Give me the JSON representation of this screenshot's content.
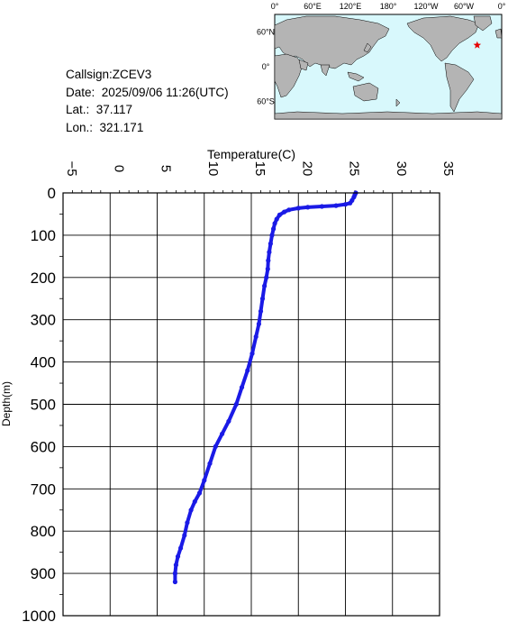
{
  "info": {
    "callsign": "Callsign:ZCEV3",
    "date": "Date:  2025/09/06 11:26(UTC)",
    "lat": "Lat.:  37.117",
    "lon": "Lon.:  321.171"
  },
  "map": {
    "lon_labels": [
      "0°",
      "60°E",
      "120°E",
      "180°",
      "120°W",
      "60°W",
      "0°"
    ],
    "lat_labels": [
      "60°N",
      "0°",
      "60°S"
    ],
    "colors": {
      "ocean": "#d8f8fc",
      "land": "#b4b4b4",
      "marker": "#e60000"
    },
    "marker": {
      "lat": 37.117,
      "lon": 321.171,
      "symbol": "star"
    }
  },
  "chart_data": {
    "type": "line",
    "xlabel": "Temperature(C)",
    "ylabel": "Depth(m)",
    "xlim": [
      -5,
      35
    ],
    "ylim": [
      1000,
      0
    ],
    "x_ticks": [
      -5,
      0,
      5,
      10,
      15,
      20,
      25,
      30,
      35
    ],
    "y_ticks": [
      0,
      100,
      200,
      300,
      400,
      500,
      600,
      700,
      800,
      900,
      1000
    ],
    "x_axis_position": "top",
    "y_axis_inverted": true,
    "grid": true,
    "series": [
      {
        "color": "#1a1ae6",
        "marker": "dot",
        "points": [
          [
            26.1,
            0
          ],
          [
            26.0,
            5
          ],
          [
            25.9,
            10
          ],
          [
            25.7,
            18
          ],
          [
            25.5,
            24
          ],
          [
            25.0,
            27
          ],
          [
            24.0,
            30
          ],
          [
            22.5,
            32
          ],
          [
            21.0,
            34
          ],
          [
            20.0,
            36
          ],
          [
            19.0,
            40
          ],
          [
            18.5,
            45
          ],
          [
            18.0,
            52
          ],
          [
            17.7,
            62
          ],
          [
            17.5,
            72
          ],
          [
            17.35,
            85
          ],
          [
            17.2,
            100
          ],
          [
            17.05,
            120
          ],
          [
            16.9,
            140
          ],
          [
            16.8,
            160
          ],
          [
            16.75,
            180
          ],
          [
            16.6,
            200
          ],
          [
            16.4,
            220
          ],
          [
            16.2,
            250
          ],
          [
            16.0,
            280
          ],
          [
            15.8,
            310
          ],
          [
            15.5,
            340
          ],
          [
            15.1,
            380
          ],
          [
            14.6,
            420
          ],
          [
            14.0,
            460
          ],
          [
            13.4,
            500
          ],
          [
            12.6,
            540
          ],
          [
            11.9,
            570
          ],
          [
            11.2,
            600
          ],
          [
            10.6,
            640
          ],
          [
            10.0,
            680
          ],
          [
            9.5,
            710
          ],
          [
            9.0,
            730
          ],
          [
            8.6,
            750
          ],
          [
            8.2,
            780
          ],
          [
            7.9,
            810
          ],
          [
            7.5,
            840
          ],
          [
            7.2,
            860
          ],
          [
            7.0,
            880
          ],
          [
            6.9,
            900
          ],
          [
            6.9,
            920
          ]
        ]
      }
    ]
  }
}
